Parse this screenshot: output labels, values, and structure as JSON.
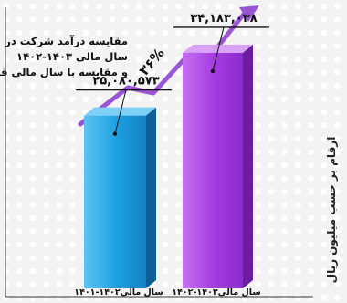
{
  "chart_data": {
    "type": "bar",
    "title_lines": [
      "مقایسه  درآمد شرکت در",
      "سال مالی ۱۴۰۳-۱۴۰۲",
      "و مقایسه با سال مالی قبل"
    ],
    "ylabel": "ارقام بر حسب میلیون ریال",
    "categories": [
      "سال مالی۱۴۰۲-۱۴۰۱",
      "سال مالی۱۴۰۳-۱۴۰۲"
    ],
    "values": [
      25080573,
      34183038
    ],
    "value_labels": [
      "۲۵,۰۸۰,۵۷۳",
      "۳۴,۱۸۳,۰۳۸"
    ],
    "growth_label": "۳۶%",
    "ylim": [
      0,
      40000000
    ],
    "colors": {
      "bar1_front": "#1b9fe0",
      "bar1_side": "#0c5f97",
      "bar1_top": "#7ed0f7",
      "bar2_front": "#a43ae0",
      "bar2_side": "#6c1d9f",
      "bar2_top": "#d9a4f7",
      "arrow": "#9a55d6",
      "background": "#f3f3f3",
      "dots": "#ffffff"
    }
  }
}
